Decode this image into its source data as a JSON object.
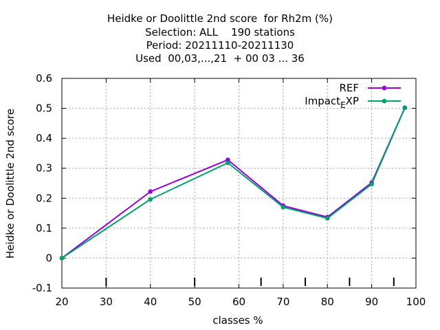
{
  "chart_data": {
    "type": "line",
    "title_lines": [
      "Heidke or Doolittle 2nd score  for Rh2m (%)",
      "Selection: ALL    190 stations",
      "Period: 20211110-20211130",
      "Used  00,03,...,21  + 00 03 ... 36"
    ],
    "xlabel": "classes %",
    "ylabel": "Heidke or Doolittle 2nd score",
    "xlim": [
      20,
      100
    ],
    "ylim": [
      -0.1,
      0.6
    ],
    "xticks": [
      20,
      30,
      40,
      50,
      60,
      70,
      80,
      90,
      100
    ],
    "yticks": [
      -0.1,
      0,
      0.1,
      0.2,
      0.3,
      0.4,
      0.5,
      0.6
    ],
    "ytick_labels": [
      "-0.1",
      "0",
      "0.1",
      "0.2",
      "0.3",
      "0.4",
      "0.5",
      "0.6"
    ],
    "class_marks": [
      30,
      50,
      65,
      75,
      85,
      95
    ],
    "grid": true,
    "legend_position": "top-right",
    "series": [
      {
        "name": "REF",
        "color": "#9400d3",
        "x": [
          20,
          40,
          57.5,
          70,
          80,
          90,
          97.5
        ],
        "y": [
          0.0,
          0.222,
          0.328,
          0.175,
          0.137,
          0.252,
          0.502
        ]
      },
      {
        "name": "Impact_EXP",
        "color": "#009e73",
        "x": [
          20,
          40,
          57.5,
          70,
          80,
          90,
          97.5
        ],
        "y": [
          0.0,
          0.196,
          0.318,
          0.17,
          0.133,
          0.247,
          0.502
        ]
      }
    ]
  }
}
